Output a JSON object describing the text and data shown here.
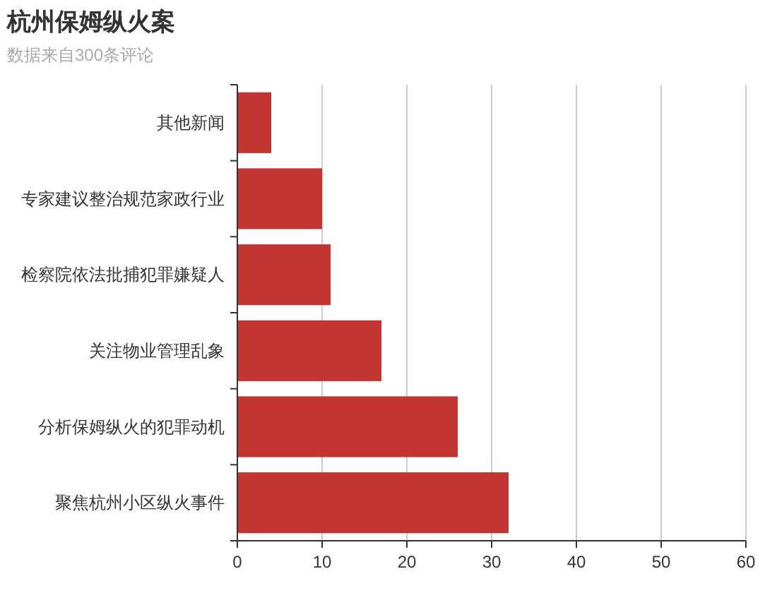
{
  "chart_data": {
    "type": "bar",
    "orientation": "horizontal",
    "title": "杭州保姆纵火案",
    "subtitle": "数据来自300条评论",
    "categories": [
      "其他新闻",
      "专家建议整治规范家政行业",
      "检察院依法批捕犯罪嫌疑人",
      "关注物业管理乱象",
      "分析保姆纵火的犯罪动机",
      "聚焦杭州小区纵火事件"
    ],
    "values": [
      4,
      10,
      11,
      17,
      26,
      32
    ],
    "color": "#c23531",
    "xlim": [
      0,
      60
    ],
    "xticks": [
      0,
      10,
      20,
      30,
      40,
      50,
      60
    ],
    "grid": "x"
  }
}
